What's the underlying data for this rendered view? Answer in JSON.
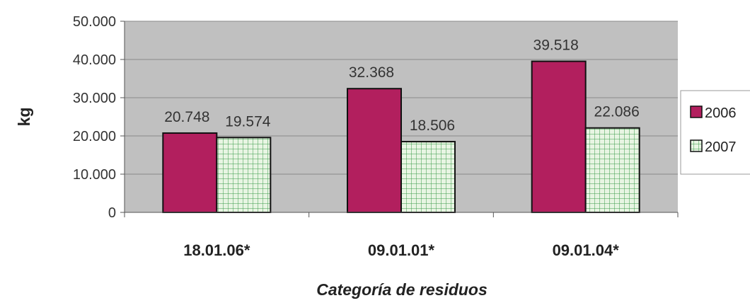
{
  "chart_data": {
    "type": "bar",
    "categories": [
      "18.01.06*",
      "09.01.01*",
      "09.01.04*"
    ],
    "series": [
      {
        "name": "2006",
        "values": [
          20748,
          32368,
          39518
        ],
        "labels": [
          "20.748",
          "32.368",
          "39.518"
        ],
        "color": "#b21f5e"
      },
      {
        "name": "2007",
        "values": [
          19574,
          18506,
          22086
        ],
        "labels": [
          "19.574",
          "18.506",
          "22.086"
        ],
        "color": "#e8f5e3",
        "pattern": "grid",
        "pattern_color": "#3a9a4a"
      }
    ],
    "xlabel": "Categoría de residuos",
    "ylabel": "kg",
    "ylim": [
      0,
      50000
    ],
    "yticks": [
      0,
      10000,
      20000,
      30000,
      40000,
      50000
    ],
    "ytick_labels": [
      "0",
      "10.000",
      "20.000",
      "30.000",
      "40.000",
      "50.000"
    ],
    "grid": true,
    "plot_background": "#c0c0c0",
    "legend_position": "right"
  }
}
